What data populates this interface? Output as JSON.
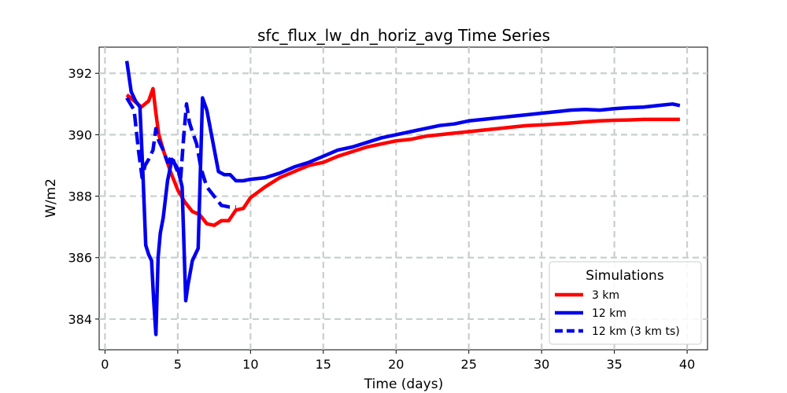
{
  "chart_data": {
    "type": "line",
    "title": "sfc_flux_lw_dn_horiz_avg Time Series",
    "xlabel": "Time (days)",
    "ylabel": "W/m2",
    "xlim": [
      -0.4,
      41.4
    ],
    "ylim": [
      383.0,
      392.85
    ],
    "xticks": [
      0,
      5,
      10,
      15,
      20,
      25,
      30,
      35,
      40
    ],
    "yticks": [
      384,
      386,
      388,
      390,
      392
    ],
    "grid": true,
    "legend": {
      "title": "Simulations",
      "placement": "lower-right"
    },
    "series": [
      {
        "name": "3 km",
        "color": "#ff0000",
        "linestyle": "solid",
        "x": [
          1.5,
          2.0,
          2.5,
          3.0,
          3.3,
          3.5,
          3.7,
          4.0,
          4.5,
          5.0,
          5.5,
          6.0,
          6.5,
          7.0,
          7.5,
          8.0,
          8.5,
          9.0,
          9.5,
          10.0,
          11.0,
          12.0,
          13.0,
          14.0,
          15.0,
          16.0,
          17.0,
          18.0,
          19.0,
          20.0,
          21.0,
          22.0,
          23.0,
          24.0,
          25.0,
          26.0,
          27.0,
          28.0,
          29.0,
          30.0,
          31.0,
          32.0,
          33.0,
          34.0,
          35.0,
          36.0,
          37.0,
          38.0,
          39.0,
          39.5
        ],
        "values": [
          391.3,
          391.1,
          390.9,
          391.1,
          391.5,
          390.7,
          390.0,
          389.5,
          388.8,
          388.2,
          387.8,
          387.5,
          387.4,
          387.1,
          387.05,
          387.2,
          387.2,
          387.55,
          387.6,
          387.95,
          388.3,
          388.6,
          388.8,
          389.0,
          389.1,
          389.3,
          389.45,
          389.6,
          389.7,
          389.8,
          389.85,
          389.95,
          390.0,
          390.05,
          390.1,
          390.15,
          390.2,
          390.25,
          390.3,
          390.32,
          390.35,
          390.38,
          390.42,
          390.45,
          390.47,
          390.48,
          390.5,
          390.5,
          390.5,
          390.5
        ]
      },
      {
        "name": "12 km",
        "color": "#0000ee",
        "linestyle": "solid",
        "x": [
          1.5,
          1.8,
          2.1,
          2.4,
          2.6,
          2.8,
          3.0,
          3.2,
          3.35,
          3.5,
          3.65,
          3.8,
          4.0,
          4.3,
          4.6,
          5.0,
          5.3,
          5.55,
          5.7,
          6.0,
          6.4,
          6.7,
          7.0,
          7.4,
          7.8,
          8.2,
          8.6,
          9.0,
          9.5,
          10.0,
          11.0,
          12.0,
          13.0,
          14.0,
          15.0,
          16.0,
          17.0,
          18.0,
          19.0,
          20.0,
          21.0,
          22.0,
          23.0,
          24.0,
          25.0,
          26.0,
          27.0,
          28.0,
          29.0,
          30.0,
          31.0,
          32.0,
          33.0,
          34.0,
          35.0,
          36.0,
          37.0,
          38.0,
          39.0,
          39.5
        ],
        "values": [
          392.4,
          391.4,
          391.1,
          390.9,
          388.8,
          386.4,
          386.1,
          385.9,
          384.6,
          383.5,
          386.0,
          386.8,
          387.3,
          388.5,
          389.2,
          388.9,
          388.3,
          384.6,
          385.1,
          385.9,
          386.3,
          391.2,
          390.8,
          389.8,
          388.8,
          388.7,
          388.7,
          388.5,
          388.5,
          388.55,
          388.6,
          388.75,
          388.95,
          389.1,
          389.3,
          389.5,
          389.6,
          389.75,
          389.9,
          390.0,
          390.1,
          390.2,
          390.3,
          390.35,
          390.45,
          390.5,
          390.55,
          390.6,
          390.65,
          390.7,
          390.75,
          390.8,
          390.82,
          390.8,
          390.85,
          390.88,
          390.9,
          390.95,
          391.0,
          390.95
        ]
      },
      {
        "name": "12 km (3 km ts)",
        "color": "#0000ee",
        "linestyle": "dashed",
        "x": [
          1.5,
          2.0,
          2.3,
          2.55,
          2.75,
          3.0,
          3.3,
          3.5,
          3.7,
          4.0,
          4.3,
          4.6,
          4.9,
          5.2,
          5.4,
          5.6,
          5.8,
          6.0,
          6.3,
          6.6,
          7.0,
          7.5,
          8.0,
          8.5,
          9.0
        ],
        "values": [
          391.2,
          390.8,
          389.5,
          388.6,
          389.0,
          389.2,
          389.5,
          390.2,
          389.8,
          389.5,
          389.1,
          389.3,
          388.9,
          388.6,
          389.9,
          391.0,
          390.4,
          390.1,
          389.7,
          388.9,
          388.3,
          388.0,
          387.7,
          387.65,
          387.65
        ]
      }
    ]
  }
}
